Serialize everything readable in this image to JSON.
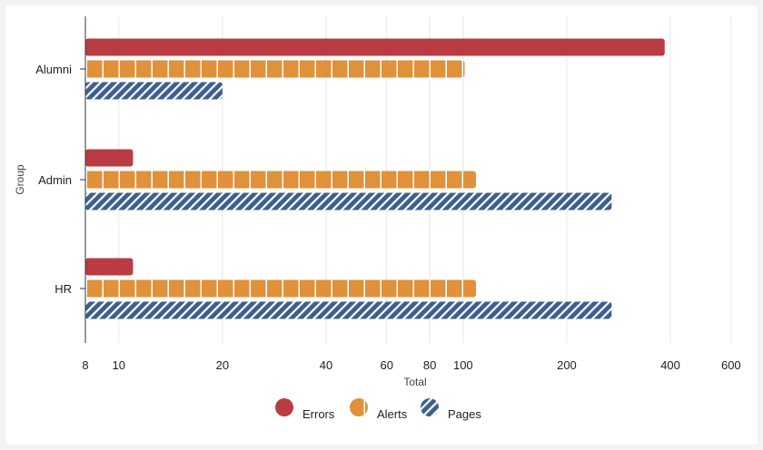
{
  "chart_data": {
    "type": "bar",
    "orientation": "horizontal",
    "xlabel": "Total",
    "ylabel": "Group",
    "x_scale": "log",
    "xlim": [
      8,
      650
    ],
    "x_ticks": [
      8,
      10,
      20,
      40,
      60,
      80,
      100,
      200,
      400,
      600
    ],
    "x_tick_labels": [
      "8",
      "10",
      "20",
      "40",
      "60",
      "80",
      "100",
      "200",
      "400",
      "600"
    ],
    "grid": "vertical",
    "legend_position": "bottom-center",
    "categories": [
      "Alumni",
      "Admin",
      "HR"
    ],
    "series": [
      {
        "name": "Errors",
        "values": [
          385,
          11,
          11
        ],
        "color": "#b83c41",
        "pattern": "solid"
      },
      {
        "name": "Alerts",
        "values": [
          101,
          109,
          109
        ],
        "color": "#e0913a",
        "pattern": "grid"
      },
      {
        "name": "Pages",
        "values": [
          20,
          270,
          270
        ],
        "color": "#3d5f8f",
        "pattern": "diagonal-stripes"
      }
    ]
  }
}
